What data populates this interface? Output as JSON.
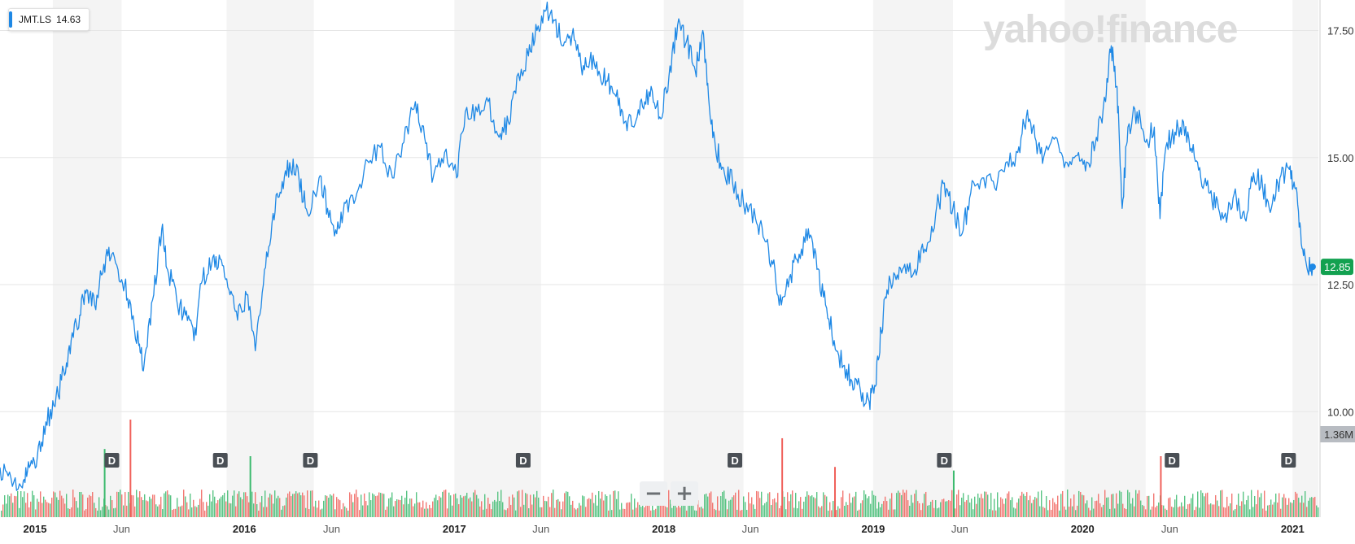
{
  "legend": {
    "symbol": "JMT.LS",
    "value": "14.63",
    "color": "#1e88e5"
  },
  "watermark": "yahoo!finance",
  "zoom": {
    "minus": "−",
    "plus": "+"
  },
  "colors": {
    "line": "#1e88e5",
    "vol_up": "#3cba6e",
    "vol_down": "#f0605a",
    "last_badge": "#12a150",
    "band": "#f4f4f4"
  },
  "chart_data": {
    "type": "line",
    "series": [
      {
        "name": "JMT.LS",
        "points": [
          [
            "2014-11-01",
            8.9
          ],
          [
            "2014-11-20",
            8.7
          ],
          [
            "2014-12-10",
            8.5
          ],
          [
            "2014-12-22",
            8.9
          ],
          [
            "2015-01-05",
            9.1
          ],
          [
            "2015-01-20",
            9.8
          ],
          [
            "2015-02-05",
            10.1
          ],
          [
            "2015-02-20",
            10.8
          ],
          [
            "2015-03-05",
            11.4
          ],
          [
            "2015-03-20",
            11.9
          ],
          [
            "2015-04-01",
            12.4
          ],
          [
            "2015-04-15",
            12.1
          ],
          [
            "2015-05-01",
            12.9
          ],
          [
            "2015-05-15",
            13.1
          ],
          [
            "2015-06-01",
            12.6
          ],
          [
            "2015-06-15",
            12.2
          ],
          [
            "2015-07-01",
            11.3
          ],
          [
            "2015-07-10",
            10.9
          ],
          [
            "2015-07-25",
            12.2
          ],
          [
            "2015-08-10",
            13.6
          ],
          [
            "2015-08-20",
            12.8
          ],
          [
            "2015-09-05",
            12.2
          ],
          [
            "2015-09-20",
            11.9
          ],
          [
            "2015-10-05",
            11.4
          ],
          [
            "2015-10-20",
            12.6
          ],
          [
            "2015-11-05",
            12.9
          ],
          [
            "2015-11-20",
            13.0
          ],
          [
            "2015-12-05",
            12.4
          ],
          [
            "2015-12-20",
            11.8
          ],
          [
            "2016-01-05",
            12.3
          ],
          [
            "2016-01-20",
            11.2
          ],
          [
            "2016-02-05",
            12.8
          ],
          [
            "2016-02-20",
            13.9
          ],
          [
            "2016-03-05",
            14.3
          ],
          [
            "2016-03-20",
            14.9
          ],
          [
            "2016-04-05",
            14.6
          ],
          [
            "2016-04-20",
            13.9
          ],
          [
            "2016-05-10",
            14.6
          ],
          [
            "2016-05-25",
            14.0
          ],
          [
            "2016-06-10",
            13.5
          ],
          [
            "2016-06-25",
            14.1
          ],
          [
            "2016-07-15",
            14.3
          ],
          [
            "2016-08-05",
            14.9
          ],
          [
            "2016-08-25",
            15.2
          ],
          [
            "2016-09-15",
            14.6
          ],
          [
            "2016-10-05",
            15.3
          ],
          [
            "2016-10-25",
            16.1
          ],
          [
            "2016-11-10",
            15.4
          ],
          [
            "2016-11-25",
            14.6
          ],
          [
            "2016-12-15",
            15.1
          ],
          [
            "2017-01-05",
            14.6
          ],
          [
            "2017-01-20",
            15.9
          ],
          [
            "2017-02-10",
            15.9
          ],
          [
            "2017-03-01",
            16.1
          ],
          [
            "2017-03-20",
            15.4
          ],
          [
            "2017-04-05",
            15.7
          ],
          [
            "2017-04-20",
            16.6
          ],
          [
            "2017-05-10",
            17.0
          ],
          [
            "2017-05-25",
            17.5
          ],
          [
            "2017-06-10",
            17.9
          ],
          [
            "2017-06-25",
            17.7
          ],
          [
            "2017-07-10",
            17.2
          ],
          [
            "2017-07-25",
            17.4
          ],
          [
            "2017-08-10",
            16.8
          ],
          [
            "2017-08-25",
            16.9
          ],
          [
            "2017-09-10",
            16.7
          ],
          [
            "2017-09-25",
            16.5
          ],
          [
            "2017-10-10",
            16.2
          ],
          [
            "2017-10-25",
            15.7
          ],
          [
            "2017-11-10",
            15.6
          ],
          [
            "2017-11-25",
            16.0
          ],
          [
            "2017-12-10",
            16.4
          ],
          [
            "2017-12-25",
            15.8
          ],
          [
            "2018-01-10",
            16.6
          ],
          [
            "2018-01-25",
            17.6
          ],
          [
            "2018-02-10",
            17.3
          ],
          [
            "2018-02-25",
            16.7
          ],
          [
            "2018-03-10",
            17.5
          ],
          [
            "2018-03-20",
            16.2
          ],
          [
            "2018-04-01",
            15.2
          ],
          [
            "2018-04-15",
            14.8
          ],
          [
            "2018-05-01",
            14.5
          ],
          [
            "2018-05-20",
            14.1
          ],
          [
            "2018-06-10",
            13.8
          ],
          [
            "2018-06-25",
            13.4
          ],
          [
            "2018-07-10",
            12.9
          ],
          [
            "2018-07-25",
            12.1
          ],
          [
            "2018-08-10",
            12.7
          ],
          [
            "2018-08-25",
            13.1
          ],
          [
            "2018-09-10",
            13.6
          ],
          [
            "2018-09-25",
            12.8
          ],
          [
            "2018-10-10",
            12.1
          ],
          [
            "2018-10-25",
            11.4
          ],
          [
            "2018-11-10",
            10.9
          ],
          [
            "2018-11-25",
            10.6
          ],
          [
            "2018-12-10",
            10.4
          ],
          [
            "2018-12-25",
            10.2
          ],
          [
            "2019-01-05",
            10.5
          ],
          [
            "2019-01-15",
            11.6
          ],
          [
            "2019-01-25",
            12.4
          ],
          [
            "2019-02-10",
            12.6
          ],
          [
            "2019-02-25",
            12.9
          ],
          [
            "2019-03-15",
            12.8
          ],
          [
            "2019-04-01",
            13.2
          ],
          [
            "2019-04-20",
            13.9
          ],
          [
            "2019-05-05",
            14.5
          ],
          [
            "2019-05-20",
            14.0
          ],
          [
            "2019-06-05",
            13.5
          ],
          [
            "2019-06-20",
            14.3
          ],
          [
            "2019-07-10",
            14.6
          ],
          [
            "2019-08-01",
            14.4
          ],
          [
            "2019-08-20",
            14.9
          ],
          [
            "2019-09-10",
            15.1
          ],
          [
            "2019-09-25",
            15.8
          ],
          [
            "2019-10-10",
            15.4
          ],
          [
            "2019-10-25",
            15.0
          ],
          [
            "2019-11-15",
            15.4
          ],
          [
            "2019-12-05",
            14.9
          ],
          [
            "2019-12-25",
            15.1
          ],
          [
            "2020-01-10",
            14.9
          ],
          [
            "2020-01-25",
            15.4
          ],
          [
            "2020-02-10",
            16.1
          ],
          [
            "2020-02-20",
            17.2
          ],
          [
            "2020-03-01",
            16.4
          ],
          [
            "2020-03-10",
            14.0
          ],
          [
            "2020-03-20",
            15.6
          ],
          [
            "2020-04-05",
            15.9
          ],
          [
            "2020-04-20",
            15.3
          ],
          [
            "2020-05-05",
            15.6
          ],
          [
            "2020-05-15",
            13.8
          ],
          [
            "2020-05-25",
            15.2
          ],
          [
            "2020-06-10",
            15.5
          ],
          [
            "2020-06-25",
            15.7
          ],
          [
            "2020-07-10",
            15.1
          ],
          [
            "2020-07-25",
            14.6
          ],
          [
            "2020-08-10",
            14.3
          ],
          [
            "2020-08-25",
            14.0
          ],
          [
            "2020-09-10",
            13.9
          ],
          [
            "2020-09-25",
            14.2
          ],
          [
            "2020-10-10",
            13.8
          ],
          [
            "2020-10-25",
            14.7
          ],
          [
            "2020-11-10",
            14.4
          ],
          [
            "2020-11-25",
            14.0
          ],
          [
            "2020-12-10",
            14.6
          ],
          [
            "2020-12-25",
            14.8
          ],
          [
            "2021-01-05",
            14.4
          ],
          [
            "2021-01-15",
            13.6
          ],
          [
            "2021-01-25",
            12.9
          ],
          [
            "2021-02-05",
            12.85
          ]
        ]
      }
    ],
    "volume": {
      "name": "Volume",
      "max_label": "1.36M",
      "spikes": [
        {
          "date": "2015-06-15",
          "value": 1.36,
          "dir": "down"
        },
        {
          "date": "2015-05-01",
          "value": 0.95,
          "dir": "up"
        },
        {
          "date": "2016-01-10",
          "value": 0.85,
          "dir": "up"
        },
        {
          "date": "2018-07-25",
          "value": 1.1,
          "dir": "down"
        },
        {
          "date": "2018-10-25",
          "value": 0.7,
          "dir": "down"
        },
        {
          "date": "2019-05-20",
          "value": 0.65,
          "dir": "up"
        },
        {
          "date": "2020-05-15",
          "value": 0.85,
          "dir": "down"
        }
      ]
    },
    "last_value": "12.85",
    "xticks": [
      {
        "date": "2015-01-01",
        "label": "2015",
        "bold": true
      },
      {
        "date": "2015-06-01",
        "label": "Jun",
        "bold": false
      },
      {
        "date": "2016-01-01",
        "label": "2016",
        "bold": true
      },
      {
        "date": "2016-06-01",
        "label": "Jun",
        "bold": false
      },
      {
        "date": "2017-01-01",
        "label": "2017",
        "bold": true
      },
      {
        "date": "2017-06-01",
        "label": "Jun",
        "bold": false
      },
      {
        "date": "2018-01-01",
        "label": "2018",
        "bold": true
      },
      {
        "date": "2018-06-01",
        "label": "Jun",
        "bold": false
      },
      {
        "date": "2019-01-01",
        "label": "2019",
        "bold": true
      },
      {
        "date": "2019-06-01",
        "label": "Jun",
        "bold": false
      },
      {
        "date": "2020-01-01",
        "label": "2020",
        "bold": true
      },
      {
        "date": "2020-06-01",
        "label": "Jun",
        "bold": false
      },
      {
        "date": "2021-01-01",
        "label": "2021",
        "bold": true
      }
    ],
    "yticks": [
      "10.00",
      "12.50",
      "15.00",
      "17.50"
    ],
    "ylim": [
      8.5,
      18.1
    ],
    "xlim": [
      "2014-11-01",
      "2021-02-15"
    ],
    "grid": true,
    "shaded_bands": [
      [
        "2015-02-01",
        "2015-06-01"
      ],
      [
        "2015-12-01",
        "2016-05-01"
      ],
      [
        "2017-01-01",
        "2017-06-01"
      ],
      [
        "2018-01-01",
        "2018-05-20"
      ],
      [
        "2019-01-01",
        "2019-05-20"
      ],
      [
        "2019-12-01",
        "2020-04-20"
      ],
      [
        "2021-01-01",
        "2021-02-15"
      ]
    ],
    "dividend_markers": [
      {
        "date": "2015-05-15",
        "label": "D"
      },
      {
        "date": "2015-11-20",
        "label": "D"
      },
      {
        "date": "2016-04-25",
        "label": "D"
      },
      {
        "date": "2017-05-01",
        "label": "D"
      },
      {
        "date": "2018-05-05",
        "label": "D"
      },
      {
        "date": "2019-05-05",
        "label": "D"
      },
      {
        "date": "2020-06-05",
        "label": "D"
      },
      {
        "date": "2020-12-25",
        "label": "D"
      }
    ]
  }
}
